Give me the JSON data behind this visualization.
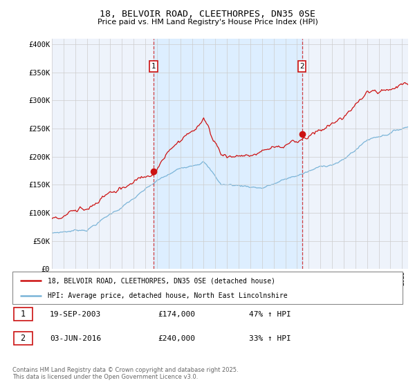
{
  "title": "18, BELVOIR ROAD, CLEETHORPES, DN35 0SE",
  "subtitle": "Price paid vs. HM Land Registry's House Price Index (HPI)",
  "ylabel_ticks": [
    "£0",
    "£50K",
    "£100K",
    "£150K",
    "£200K",
    "£250K",
    "£300K",
    "£350K",
    "£400K"
  ],
  "ytick_values": [
    0,
    50000,
    100000,
    150000,
    200000,
    250000,
    300000,
    350000,
    400000
  ],
  "ylim": [
    0,
    410000
  ],
  "xlim_start": 1995.0,
  "xlim_end": 2025.5,
  "hpi_color": "#7ab4d8",
  "price_color": "#cc1111",
  "marker1_date": 2003.72,
  "marker1_price": 174000,
  "marker2_date": 2016.42,
  "marker2_price": 240000,
  "shade_color": "#ddeeff",
  "legend_label1": "18, BELVOIR ROAD, CLEETHORPES, DN35 0SE (detached house)",
  "legend_label2": "HPI: Average price, detached house, North East Lincolnshire",
  "footnote": "Contains HM Land Registry data © Crown copyright and database right 2025.\nThis data is licensed under the Open Government Licence v3.0.",
  "background_color": "#eef3fb"
}
